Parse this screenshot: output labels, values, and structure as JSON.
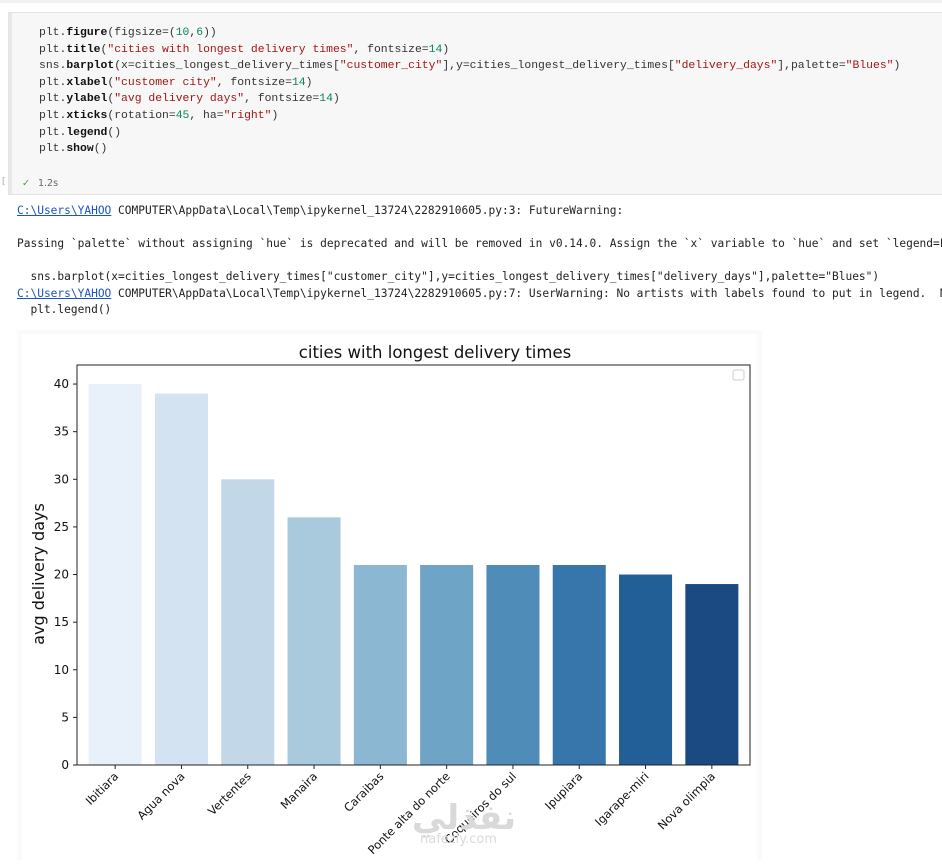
{
  "cell": {
    "code_lines": [
      [
        {
          "t": "plt.",
          "c": "kw"
        },
        {
          "t": "figure",
          "c": "fn"
        },
        {
          "t": "(figsize=(",
          "c": "kw"
        },
        {
          "t": "10",
          "c": "num"
        },
        {
          "t": ",",
          "c": "kw"
        },
        {
          "t": "6",
          "c": "num"
        },
        {
          "t": "))",
          "c": "kw"
        }
      ],
      [
        {
          "t": "plt.",
          "c": "kw"
        },
        {
          "t": "title",
          "c": "fn"
        },
        {
          "t": "(",
          "c": "kw"
        },
        {
          "t": "\"cities with longest delivery times\"",
          "c": "str"
        },
        {
          "t": ", fontsize=",
          "c": "kw"
        },
        {
          "t": "14",
          "c": "num"
        },
        {
          "t": ")",
          "c": "kw"
        }
      ],
      [
        {
          "t": "sns.",
          "c": "kw"
        },
        {
          "t": "barplot",
          "c": "fn"
        },
        {
          "t": "(x=cities_longest_delivery_times[",
          "c": "kw"
        },
        {
          "t": "\"customer_city\"",
          "c": "str"
        },
        {
          "t": "],y=cities_longest_delivery_times[",
          "c": "kw"
        },
        {
          "t": "\"delivery_days\"",
          "c": "str"
        },
        {
          "t": "],palette=",
          "c": "kw"
        },
        {
          "t": "\"Blues\"",
          "c": "str"
        },
        {
          "t": ")",
          "c": "kw"
        }
      ],
      [
        {
          "t": "plt.",
          "c": "kw"
        },
        {
          "t": "xlabel",
          "c": "fn"
        },
        {
          "t": "(",
          "c": "kw"
        },
        {
          "t": "\"customer city\"",
          "c": "str"
        },
        {
          "t": ", fontsize=",
          "c": "kw"
        },
        {
          "t": "14",
          "c": "num"
        },
        {
          "t": ")",
          "c": "kw"
        }
      ],
      [
        {
          "t": "plt.",
          "c": "kw"
        },
        {
          "t": "ylabel",
          "c": "fn"
        },
        {
          "t": "(",
          "c": "kw"
        },
        {
          "t": "\"avg delivery days\"",
          "c": "str"
        },
        {
          "t": ", fontsize=",
          "c": "kw"
        },
        {
          "t": "14",
          "c": "num"
        },
        {
          "t": ")",
          "c": "kw"
        }
      ],
      [
        {
          "t": "plt.",
          "c": "kw"
        },
        {
          "t": "xticks",
          "c": "fn"
        },
        {
          "t": "(rotation=",
          "c": "kw"
        },
        {
          "t": "45",
          "c": "num"
        },
        {
          "t": ", ha=",
          "c": "kw"
        },
        {
          "t": "\"right\"",
          "c": "str"
        },
        {
          "t": ")",
          "c": "kw"
        }
      ],
      [
        {
          "t": "plt.",
          "c": "kw"
        },
        {
          "t": "legend",
          "c": "fn"
        },
        {
          "t": "()",
          "c": "kw"
        }
      ],
      [
        {
          "t": "plt.",
          "c": "kw"
        },
        {
          "t": "show",
          "c": "fn"
        },
        {
          "t": "()",
          "c": "kw"
        }
      ]
    ],
    "exec_marker": "[",
    "exec_time": "1.2s",
    "check_icon": "check-icon"
  },
  "output": {
    "line1_link": "C:\\Users\\YAHOO",
    "line1_rest": " COMPUTER\\AppData\\Local\\Temp\\ipykernel_13724\\2282910605.py:3: FutureWarning:",
    "line2": "Passing `palette` without assigning `hue` is deprecated and will be removed in v0.14.0. Assign the `x` variable to `hue` and set `legend=Fa",
    "line3": "  sns.barplot(x=cities_longest_delivery_times[\"customer_city\"],y=cities_longest_delivery_times[\"delivery_days\"],palette=\"Blues\")",
    "line4_link": "C:\\Users\\YAHOO",
    "line4_rest": " COMPUTER\\AppData\\Local\\Temp\\ipykernel_13724\\2282910605.py:7: UserWarning: No artists with labels found to put in legend.  No",
    "line5": "  plt.legend()"
  },
  "chart_data": {
    "type": "bar",
    "title": "cities with longest delivery times",
    "xlabel": "",
    "ylabel": "avg delivery days",
    "categories": [
      "Ibitiara",
      "Agua nova",
      "Vertentes",
      "Manaira",
      "Caraibas",
      "Ponte alta do norte",
      "Coqueiros do sul",
      "Ipupiara",
      "Igarape-miri",
      "Nova olimpia"
    ],
    "values": [
      40,
      39,
      30,
      26,
      21,
      21,
      21,
      21,
      20,
      19
    ],
    "colors": [
      "#e8f1fa",
      "#d4e3f1",
      "#c2d8e8",
      "#a9c9dd",
      "#8cb7d2",
      "#6ea4c6",
      "#4f8db8",
      "#3776ab",
      "#235f97",
      "#1b4a82"
    ],
    "ylim": [
      0,
      42
    ],
    "yticks": [
      0,
      5,
      10,
      15,
      20,
      25,
      30,
      35,
      40
    ],
    "grid": false,
    "legend": "top-right (empty)"
  },
  "watermark": {
    "arabic": "نفذلي",
    "latin": "nafezly.com"
  }
}
